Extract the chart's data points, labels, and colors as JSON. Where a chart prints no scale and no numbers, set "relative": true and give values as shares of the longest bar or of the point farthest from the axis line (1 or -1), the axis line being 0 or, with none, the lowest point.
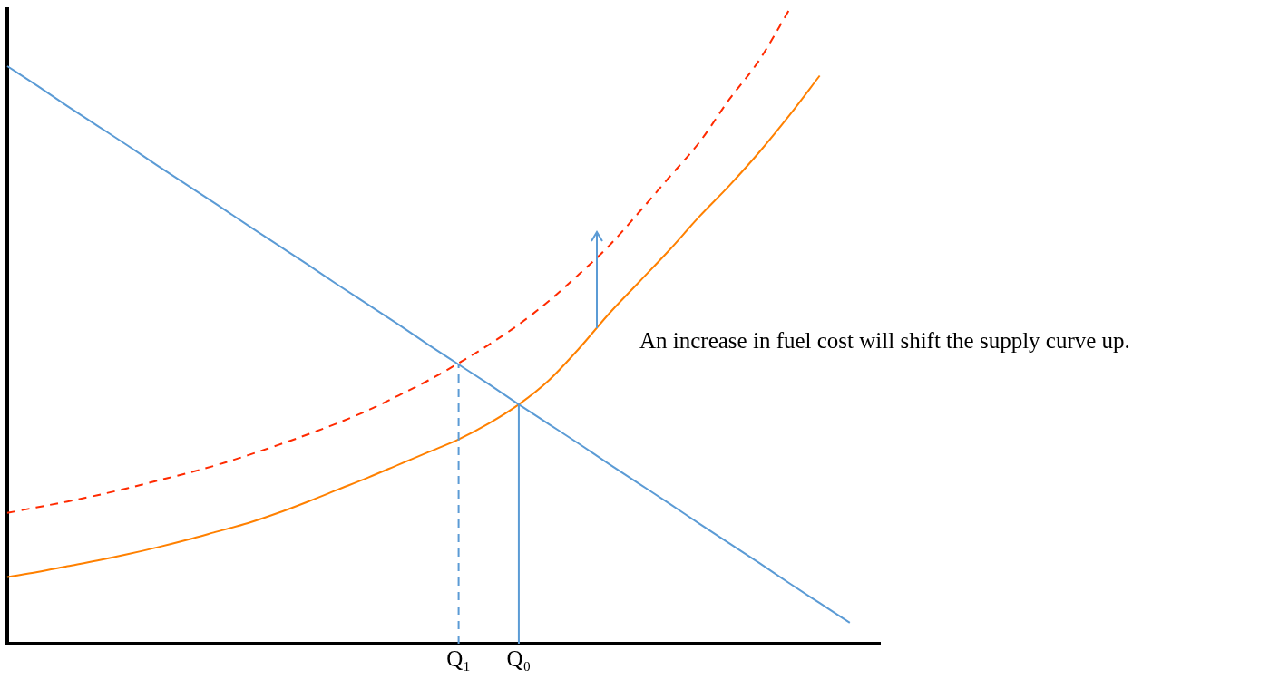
{
  "chart_data": {
    "type": "line",
    "relative": true,
    "marker": "none",
    "legend": false,
    "grid": false,
    "categories": [
      null,
      null,
      null,
      null,
      null,
      null,
      null,
      null,
      null,
      null,
      null,
      null,
      null,
      null,
      null,
      "Q₁",
      null,
      "Q₀",
      null,
      null,
      null,
      null,
      null,
      null,
      null,
      null,
      null,
      null,
      null,
      null
    ],
    "annotations": [
      "An increase in fuel cost will shift the supply curve up."
    ],
    "ref_lines": [
      {
        "axis": "x",
        "value": "Q₁",
        "color": "#5b9bd5",
        "line_style": "dashed"
      },
      {
        "axis": "x",
        "value": "Q₀",
        "color": "#5b9bd5",
        "line_style": "solid"
      }
    ],
    "series": [
      {
        "color": "#5b9bd5",
        "line_style": "solid",
        "values": [
          0.91,
          0.879,
          0.847,
          0.816,
          0.785,
          0.753,
          0.722,
          0.691,
          0.659,
          0.628,
          0.597,
          0.565,
          0.534,
          0.503,
          0.471,
          0.44,
          0.409,
          0.377,
          0.346,
          0.315,
          0.283,
          0.252,
          0.221,
          0.189,
          0.158,
          0.127,
          0.095,
          0.064,
          0.033,
          null
        ]
      },
      {
        "color": "#ff8000",
        "line_style": "solid",
        "values": [
          0.105,
          0.113,
          0.122,
          0.131,
          0.141,
          0.152,
          0.164,
          0.177,
          0.19,
          0.206,
          0.224,
          0.243,
          0.262,
          0.282,
          0.302,
          0.322,
          0.347,
          0.377,
          0.415,
          0.465,
          0.52,
          0.57,
          0.62,
          0.673,
          0.722,
          0.775,
          0.833,
          0.895,
          null,
          null
        ]
      },
      {
        "color": "#ff2a00",
        "line_style": "dashed",
        "values": [
          0.206,
          0.215,
          0.224,
          0.234,
          0.245,
          0.257,
          0.269,
          0.282,
          0.297,
          0.313,
          0.33,
          0.348,
          0.368,
          0.391,
          0.415,
          0.442,
          0.471,
          0.503,
          0.54,
          0.582,
          0.627,
          0.68,
          0.735,
          0.79,
          0.858,
          0.92,
          1.0,
          null,
          null,
          null
        ]
      }
    ]
  }
}
